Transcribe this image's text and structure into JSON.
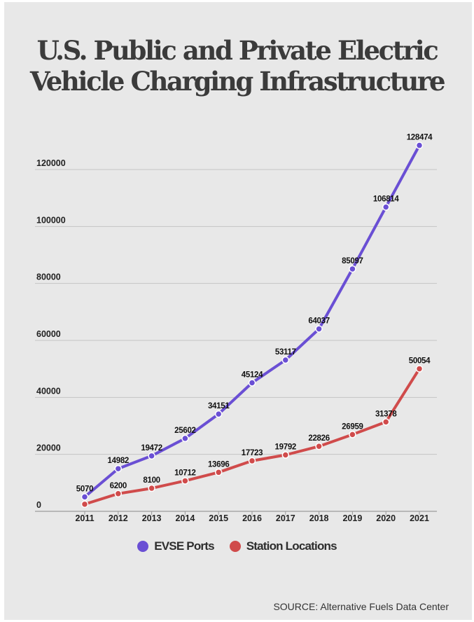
{
  "title_lines": [
    "U.S. Public and Private Electric",
    "Vehicle Charging Infrastructure"
  ],
  "source": "SOURCE: Alternative Fuels Data Center",
  "chart_data": {
    "type": "line",
    "title": "U.S. Public and Private Electric Vehicle Charging Infrastructure",
    "xlabel": "",
    "ylabel": "",
    "x": [
      "2011",
      "2012",
      "2013",
      "2014",
      "2015",
      "2016",
      "2017",
      "2018",
      "2019",
      "2020",
      "2021"
    ],
    "y_ticks": [
      "0",
      "20000",
      "40000",
      "60000",
      "80000",
      "100000",
      "120000"
    ],
    "ylim": [
      0,
      130000
    ],
    "grid": "horizontal",
    "legend": "bottom-center",
    "series": [
      {
        "name": "EVSE Ports",
        "color": "#6a4fd4",
        "values": [
          5070,
          14982,
          19472,
          25602,
          34151,
          45124,
          53117,
          64037,
          85097,
          106814,
          128474
        ],
        "labels": [
          "5070",
          "14982",
          "19472",
          "25602",
          "34151",
          "45124",
          "53117",
          "64037",
          "85097",
          "106814",
          "128474"
        ]
      },
      {
        "name": "Station Locations",
        "color": "#d04b4b",
        "values": [
          2500,
          6200,
          8100,
          10712,
          13696,
          17723,
          19792,
          22826,
          26959,
          31378,
          50054
        ],
        "labels": [
          null,
          "6200",
          "8100",
          "10712",
          "13696",
          "17723",
          "19792",
          "22826",
          "26959",
          "31378",
          "50054"
        ]
      }
    ]
  }
}
